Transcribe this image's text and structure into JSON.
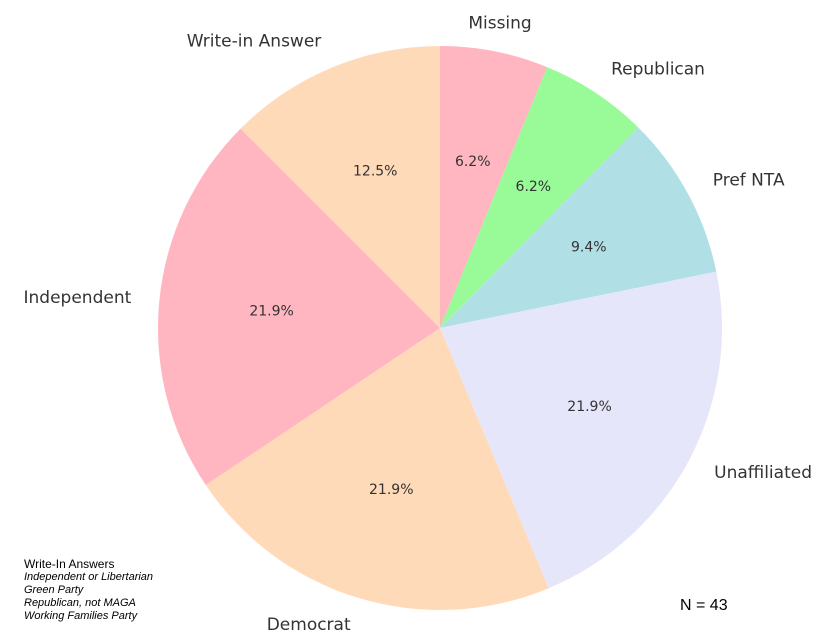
{
  "chart_data": {
    "type": "pie",
    "start_angle_deg": 90,
    "direction": "clockwise",
    "slices": [
      {
        "label": "Missing",
        "value": 6.2,
        "pct_label": "6.2%",
        "color": "#ffb6c1"
      },
      {
        "label": "Republican",
        "value": 6.2,
        "pct_label": "6.2%",
        "color": "#98fb98"
      },
      {
        "label": "Pref NTA",
        "value": 9.4,
        "pct_label": "9.4%",
        "color": "#b0e0e6"
      },
      {
        "label": "Unaffiliated",
        "value": 21.9,
        "pct_label": "21.9%",
        "color": "#e6e6fa"
      },
      {
        "label": "Democrat",
        "value": 21.9,
        "pct_label": "21.9%",
        "color": "#ffdab9"
      },
      {
        "label": "Independent",
        "value": 21.9,
        "pct_label": "21.9%",
        "color": "#ffb6c1"
      },
      {
        "label": "Write-in Answer",
        "value": 12.5,
        "pct_label": "12.5%",
        "color": "#ffdab9"
      }
    ]
  },
  "note": {
    "title": "Write-In Answers",
    "items": [
      "Independent or Libertarian",
      "Green Party",
      "Republican, not MAGA",
      "Working Families Party"
    ]
  },
  "n_label": "N = 43"
}
